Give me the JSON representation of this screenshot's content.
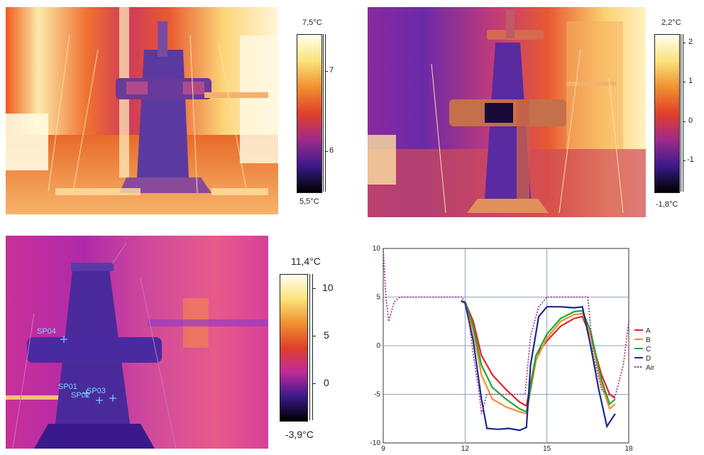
{
  "panels": [
    {
      "id": "top-left",
      "scale_max_label": "7,5°C",
      "scale_min_label": "5,5°C",
      "ticks": [
        "7",
        "6"
      ]
    },
    {
      "id": "top-right",
      "scale_max_label": "2,2°C",
      "scale_min_label": "-1,8°C",
      "ticks": [
        "2",
        "1",
        "0",
        "-1"
      ]
    },
    {
      "id": "bottom-left",
      "scale_max_label": "11,4°C",
      "scale_min_label": "-3,9°C",
      "ticks": [
        "10",
        "5",
        "0"
      ],
      "spot_labels": [
        "SP04",
        "SP01",
        "SP02",
        "SP03"
      ]
    }
  ],
  "colors": {
    "ironbow_low": "#000000",
    "ironbow_mid1": "#3a1a8a",
    "ironbow_mid2": "#c0208a",
    "ironbow_mid3": "#f0601a",
    "ironbow_high": "#ffffe8",
    "spot_marker": "#7ad6ff",
    "A": "#e8202a",
    "B": "#f0902a",
    "C": "#1ea83a",
    "D": "#1a2a8a",
    "Air": "#9a2a8a"
  },
  "chart_data": {
    "type": "line",
    "title": "",
    "xlabel": "",
    "ylabel": "",
    "xlim": [
      9,
      18
    ],
    "ylim": [
      -10,
      10
    ],
    "xticks": [
      "9",
      "12",
      "15",
      "18"
    ],
    "yticks": [
      "10",
      "5",
      "0",
      "-5",
      "-10"
    ],
    "grid": true,
    "legend_position": "right",
    "series": [
      {
        "name": "A",
        "color": "#e8202a",
        "x": [
          11.85,
          12.0,
          12.3,
          12.6,
          13.0,
          13.5,
          14.0,
          14.25,
          14.6,
          15.0,
          15.5,
          16.0,
          16.3,
          16.6,
          17.0,
          17.3,
          17.5
        ],
        "y": [
          4.6,
          4.5,
          2.5,
          -1.0,
          -3.0,
          -4.5,
          -5.8,
          -6.2,
          -1.0,
          0.5,
          2.0,
          2.8,
          3.0,
          1.0,
          -3.0,
          -5.0,
          -5.4
        ]
      },
      {
        "name": "B",
        "color": "#f0902a",
        "x": [
          11.85,
          12.0,
          12.3,
          12.6,
          13.0,
          13.5,
          14.0,
          14.25,
          14.6,
          15.0,
          15.5,
          16.0,
          16.3,
          16.6,
          17.0,
          17.3,
          17.5
        ],
        "y": [
          4.6,
          4.5,
          1.5,
          -3.0,
          -5.5,
          -6.3,
          -6.8,
          -7.0,
          -1.5,
          0.8,
          2.5,
          3.2,
          3.3,
          1.0,
          -4.0,
          -6.5,
          -6.0
        ]
      },
      {
        "name": "C",
        "color": "#1ea83a",
        "x": [
          11.85,
          12.0,
          12.3,
          12.6,
          13.0,
          13.5,
          14.0,
          14.25,
          14.6,
          15.0,
          15.5,
          16.0,
          16.3,
          16.6,
          17.0,
          17.3,
          17.5
        ],
        "y": [
          4.6,
          4.5,
          2.0,
          -2.0,
          -4.3,
          -5.5,
          -6.5,
          -6.8,
          -1.0,
          1.2,
          2.8,
          3.5,
          3.6,
          1.5,
          -3.5,
          -6.0,
          -5.5
        ]
      },
      {
        "name": "D",
        "color": "#1a2a8a",
        "x": [
          11.85,
          12.0,
          12.3,
          12.6,
          12.8,
          13.2,
          13.6,
          14.0,
          14.25,
          14.4,
          14.7,
          15.0,
          15.5,
          16.0,
          16.3,
          16.6,
          16.9,
          17.2,
          17.5
        ],
        "y": [
          4.6,
          4.4,
          0.5,
          -5.5,
          -8.5,
          -8.6,
          -8.5,
          -8.7,
          -8.4,
          -2.0,
          3.0,
          4.0,
          4.0,
          3.9,
          4.0,
          0.0,
          -4.5,
          -8.3,
          -7.0
        ]
      },
      {
        "name": "Air",
        "color": "#9a2a8a",
        "x": [
          9.0,
          9.1,
          9.2,
          9.4,
          9.6,
          10.0,
          11.0,
          11.9,
          12.1,
          12.3,
          12.5,
          12.6,
          12.8,
          13.5,
          14.2,
          14.4,
          14.7,
          15.0,
          16.0,
          16.5,
          16.7,
          17.0,
          17.2,
          17.5,
          17.8,
          18.0
        ],
        "y": [
          10.0,
          5.0,
          2.5,
          4.5,
          5.0,
          5.0,
          5.0,
          5.0,
          3.5,
          -1.0,
          -4.5,
          -7.0,
          -5.0,
          -5.0,
          -5.0,
          1.0,
          4.0,
          5.0,
          5.0,
          5.0,
          -1.0,
          -4.5,
          -5.0,
          -5.2,
          -2.0,
          2.5
        ]
      }
    ]
  }
}
